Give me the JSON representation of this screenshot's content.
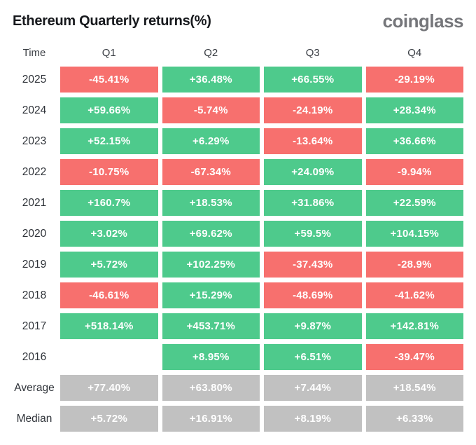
{
  "header": {
    "title": "Ethereum Quarterly returns(%)",
    "logo_text": "coinglass"
  },
  "colors": {
    "positive": "#4ECA8C",
    "negative": "#F7706E",
    "summary": "#C1C1C1",
    "title_text": "#17191d",
    "logo_text": "#75767a"
  },
  "table": {
    "columns": [
      "Time",
      "Q1",
      "Q2",
      "Q3",
      "Q4"
    ],
    "rows": [
      {
        "label": "2025",
        "kind": "year",
        "cells": [
          "-45.41%",
          "+36.48%",
          "+66.55%",
          "-29.19%"
        ]
      },
      {
        "label": "2024",
        "kind": "year",
        "cells": [
          "+59.66%",
          "-5.74%",
          "-24.19%",
          "+28.34%"
        ]
      },
      {
        "label": "2023",
        "kind": "year",
        "cells": [
          "+52.15%",
          "+6.29%",
          "-13.64%",
          "+36.66%"
        ]
      },
      {
        "label": "2022",
        "kind": "year",
        "cells": [
          "-10.75%",
          "-67.34%",
          "+24.09%",
          "-9.94%"
        ]
      },
      {
        "label": "2021",
        "kind": "year",
        "cells": [
          "+160.7%",
          "+18.53%",
          "+31.86%",
          "+22.59%"
        ]
      },
      {
        "label": "2020",
        "kind": "year",
        "cells": [
          "+3.02%",
          "+69.62%",
          "+59.5%",
          "+104.15%"
        ]
      },
      {
        "label": "2019",
        "kind": "year",
        "cells": [
          "+5.72%",
          "+102.25%",
          "-37.43%",
          "-28.9%"
        ]
      },
      {
        "label": "2018",
        "kind": "year",
        "cells": [
          "-46.61%",
          "+15.29%",
          "-48.69%",
          "-41.62%"
        ]
      },
      {
        "label": "2017",
        "kind": "year",
        "cells": [
          "+518.14%",
          "+453.71%",
          "+9.87%",
          "+142.81%"
        ]
      },
      {
        "label": "2016",
        "kind": "year",
        "cells": [
          "",
          "+8.95%",
          "+6.51%",
          "-39.47%"
        ]
      },
      {
        "label": "Average",
        "kind": "summary",
        "cells": [
          "+77.40%",
          "+63.80%",
          "+7.44%",
          "+18.54%"
        ]
      },
      {
        "label": "Median",
        "kind": "summary",
        "cells": [
          "+5.72%",
          "+16.91%",
          "+8.19%",
          "+6.33%"
        ]
      }
    ]
  },
  "chart_data": {
    "type": "heatmap",
    "title": "Ethereum Quarterly returns(%)",
    "columns": [
      "Q1",
      "Q2",
      "Q3",
      "Q4"
    ],
    "rows": [
      "2025",
      "2024",
      "2023",
      "2022",
      "2021",
      "2020",
      "2019",
      "2018",
      "2017",
      "2016"
    ],
    "values_pct": [
      [
        -45.41,
        36.48,
        66.55,
        -29.19
      ],
      [
        59.66,
        -5.74,
        -24.19,
        28.34
      ],
      [
        52.15,
        6.29,
        -13.64,
        36.66
      ],
      [
        -10.75,
        -67.34,
        24.09,
        -9.94
      ],
      [
        160.7,
        18.53,
        31.86,
        22.59
      ],
      [
        3.02,
        69.62,
        59.5,
        104.15
      ],
      [
        5.72,
        102.25,
        -37.43,
        -28.9
      ],
      [
        -46.61,
        15.29,
        -48.69,
        -41.62
      ],
      [
        518.14,
        453.71,
        9.87,
        142.81
      ],
      [
        null,
        8.95,
        6.51,
        -39.47
      ]
    ],
    "average_pct": [
      77.4,
      63.8,
      7.44,
      18.54
    ],
    "median_pct": [
      5.72,
      16.91,
      8.19,
      6.33
    ],
    "legend": "green = positive return, red = negative return, gray = summary rows",
    "source_brand": "coinglass"
  }
}
